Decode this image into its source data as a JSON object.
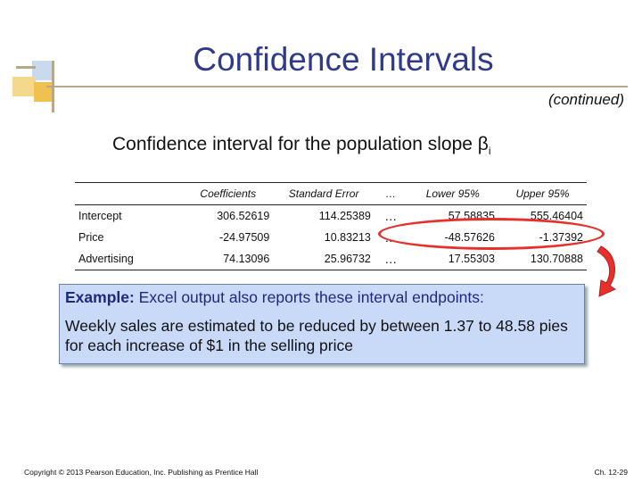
{
  "header": {
    "title": "Confidence Intervals",
    "subtitle": "(continued)"
  },
  "heading": {
    "text": "Confidence interval for the population slope β",
    "subscript": "i"
  },
  "table": {
    "columns": [
      "",
      "Coefficients",
      "Standard Error",
      "…",
      "Lower 95%",
      "Upper 95%"
    ],
    "rows": [
      [
        "Intercept",
        "306.52619",
        "114.25389",
        "…",
        "57.58835",
        "555.46404"
      ],
      [
        "Price",
        "-24.97509",
        "10.83213",
        "…",
        "-48.57626",
        "-1.37392"
      ],
      [
        "Advertising",
        "74.13096",
        "25.96732",
        "…",
        "17.55303",
        "130.70888"
      ]
    ]
  },
  "example": {
    "label": "Example:",
    "text": " Excel output also reports these interval endpoints:",
    "body": "Weekly sales are estimated to be reduced by between 1.37 to 48.58 pies for each increase of $1 in the selling price"
  },
  "footer": {
    "copyright": "Copyright © 2013 Pearson Education, Inc. Publishing as Prentice Hall",
    "page": "Ch. 12-29"
  },
  "colors": {
    "title": "#2f3a8f",
    "highlight": "#e8302a",
    "example_bg": "#c9daf8"
  }
}
